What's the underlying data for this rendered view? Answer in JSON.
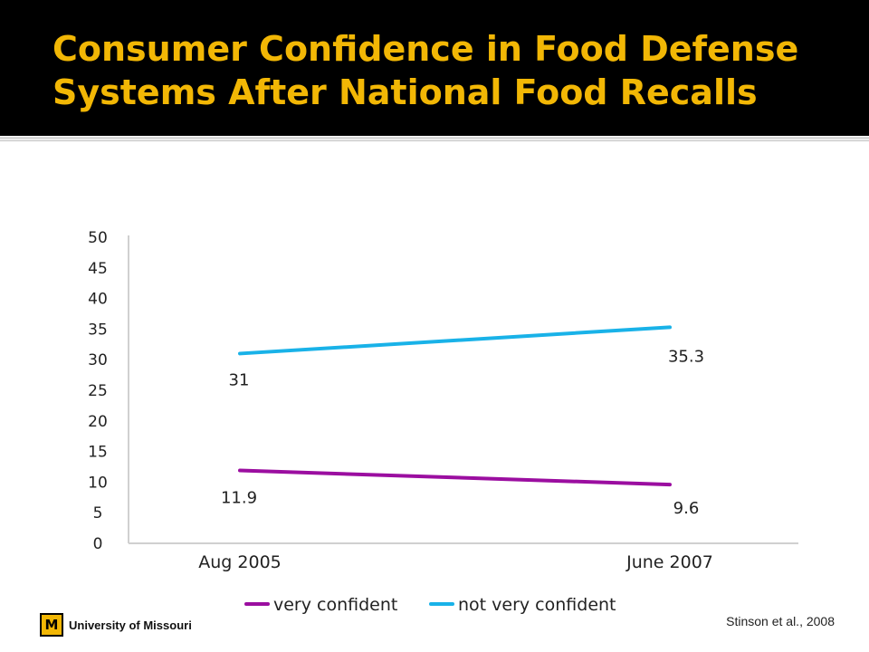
{
  "header": {
    "title_line1": "Consumer Confidence in Food Defense",
    "title_line2": "Systems After National Food Recalls"
  },
  "footer": {
    "logo_letter": "M",
    "logo_text": "University of Missouri",
    "citation": "Stinson et al., 2008"
  },
  "colors": {
    "title": "#f2b705",
    "very_confident": "#9b0ea0",
    "not_very_confident": "#19b2e8"
  },
  "chart_data": {
    "type": "line",
    "categories": [
      "Aug 2005",
      "June 2007"
    ],
    "y_ticks": [
      "0",
      "5",
      "10",
      "15",
      "20",
      "25",
      "30",
      "35",
      "40",
      "45",
      "50"
    ],
    "ylim": [
      0,
      50
    ],
    "grid": false,
    "legend_position": "bottom",
    "series": [
      {
        "name": "very confident",
        "values": [
          11.9,
          9.6
        ],
        "labels": [
          "11.9",
          "9.6"
        ],
        "color": "#9b0ea0"
      },
      {
        "name": "not very confident",
        "values": [
          31,
          35.3
        ],
        "labels": [
          "31",
          "35.3"
        ],
        "color": "#19b2e8"
      }
    ]
  }
}
